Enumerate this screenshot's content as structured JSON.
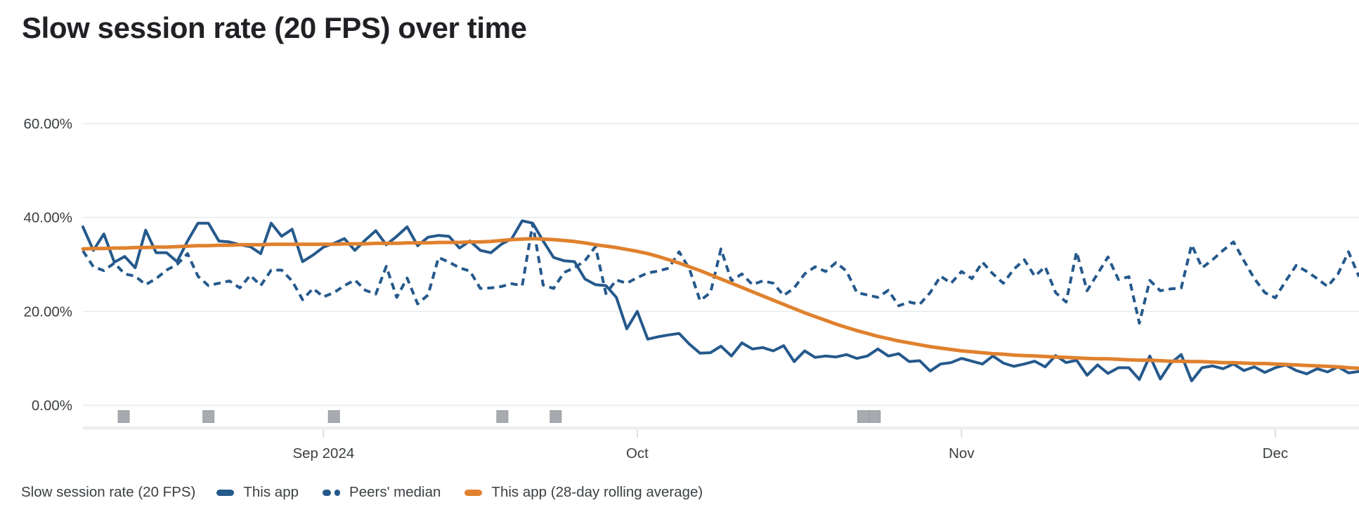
{
  "title": "Slow session rate (20 FPS) over time",
  "legend": {
    "axis_label": "Slow session rate (20 FPS)",
    "items": [
      {
        "label": "This app",
        "style": "solid",
        "color": "#25598C"
      },
      {
        "label": "Peers' median",
        "style": "dashed",
        "color": "#25598C"
      },
      {
        "label": "This app (28-day rolling average)",
        "style": "solid",
        "color": "#E0812E"
      }
    ]
  },
  "colors": {
    "grid": "#E8EAED",
    "axis_text": "#3C4043",
    "title_text": "#202124",
    "release_marker_fill": "#A7ABB0",
    "release_marker_edge": "#999EA3",
    "band_bar": "#EDEEF0",
    "month_tick": "#DEE0E3",
    "series_blue": "#25598C",
    "series_orange": "#E0812E"
  },
  "chart_data": {
    "type": "line",
    "title": "Slow session rate (20 FPS) over time",
    "xlabel": "",
    "ylabel": "Slow session rate (20 FPS)",
    "ylim": [
      0,
      60
    ],
    "grid": true,
    "legend_position": "bottom",
    "x_unit": "days (daily points, Aug 9 2024 - Dec 9 2024)",
    "y_ticks": [
      {
        "value": 60,
        "label": "60.00%"
      },
      {
        "value": 40,
        "label": "40.00%"
      },
      {
        "value": 20,
        "label": "20.00%"
      },
      {
        "value": 0,
        "label": "0.00%"
      }
    ],
    "x_ticks": [
      {
        "day": 23,
        "label": "Sep 2024"
      },
      {
        "day": 53,
        "label": "Oct"
      },
      {
        "day": 84,
        "label": "Nov"
      },
      {
        "day": 114,
        "label": "Dec"
      }
    ],
    "release_markers": {
      "days": [
        3.9,
        12.0,
        24.0,
        40.1,
        45.2,
        74.6,
        75.7
      ]
    },
    "series": [
      {
        "name": "This app",
        "style": "solid",
        "color": "#25598C",
        "values": [
          38.0,
          33.0,
          36.5,
          30.5,
          31.7,
          29.3,
          37.3,
          32.5,
          32.5,
          30.6,
          35.0,
          38.8,
          38.8,
          35.0,
          34.8,
          34.2,
          33.8,
          32.3,
          38.8,
          36.0,
          37.5,
          30.6,
          32.0,
          33.7,
          34.5,
          35.5,
          33.0,
          35.2,
          37.2,
          34.2,
          36.0,
          38.0,
          34.0,
          35.8,
          36.2,
          36.0,
          33.5,
          35.0,
          33.0,
          32.5,
          34.3,
          35.5,
          39.3,
          38.8,
          35.0,
          31.5,
          30.8,
          30.6,
          26.9,
          25.7,
          25.5,
          23.0,
          16.3,
          20.0,
          14.1,
          14.6,
          15.0,
          15.3,
          13.0,
          11.1,
          11.2,
          12.6,
          10.5,
          13.3,
          12.0,
          12.3,
          11.6,
          12.7,
          9.3,
          11.6,
          10.2,
          10.5,
          10.3,
          10.8,
          10.0,
          10.5,
          12.0,
          10.5,
          11.0,
          9.3,
          9.5,
          7.3,
          8.8,
          9.1,
          10.0,
          9.4,
          8.8,
          10.5,
          9.0,
          8.3,
          8.8,
          9.4,
          8.2,
          10.6,
          9.1,
          9.6,
          6.4,
          8.6,
          6.8,
          8.0,
          8.0,
          5.5,
          10.5,
          5.6,
          9.0,
          10.8,
          5.2,
          8.0,
          8.4,
          7.8,
          8.8,
          7.4,
          8.2,
          7.0,
          8.0,
          8.6,
          7.4,
          6.7,
          7.8,
          7.1,
          8.2,
          6.9,
          7.2
        ]
      },
      {
        "name": "Peers' median",
        "style": "dashed",
        "color": "#25598C",
        "values": [
          32.9,
          29.5,
          28.7,
          30.3,
          28.0,
          27.5,
          25.7,
          27.0,
          28.8,
          30.0,
          32.3,
          27.5,
          25.5,
          26.0,
          26.5,
          25.0,
          27.7,
          25.5,
          28.8,
          28.8,
          26.5,
          22.5,
          24.9,
          23.1,
          24.0,
          25.5,
          26.7,
          24.5,
          23.7,
          29.6,
          23.0,
          27.1,
          21.6,
          23.5,
          31.5,
          30.5,
          29.3,
          28.6,
          24.9,
          25.0,
          25.3,
          25.9,
          25.5,
          38.7,
          25.6,
          24.9,
          28.3,
          29.3,
          30.8,
          33.8,
          23.8,
          26.7,
          26.0,
          27.2,
          28.2,
          28.6,
          29.2,
          32.7,
          29.0,
          22.3,
          24.0,
          33.3,
          26.5,
          28.0,
          25.7,
          26.5,
          26.0,
          23.4,
          25.0,
          28.0,
          29.5,
          28.5,
          30.4,
          28.6,
          24.0,
          23.5,
          23.0,
          24.5,
          21.2,
          22.0,
          21.5,
          24.0,
          27.5,
          26.0,
          28.5,
          27.0,
          30.5,
          28.0,
          26.0,
          29.0,
          31.0,
          27.5,
          29.5,
          24.0,
          22.0,
          32.7,
          24.4,
          28.0,
          31.6,
          26.8,
          27.4,
          17.5,
          26.6,
          24.4,
          24.8,
          25.0,
          34.2,
          29.3,
          31.0,
          33.0,
          34.8,
          30.8,
          27.0,
          24.0,
          22.9,
          26.5,
          29.8,
          28.5,
          27.0,
          25.3,
          28.0,
          32.7,
          27.4
        ]
      },
      {
        "name": "This app (28-day rolling average)",
        "style": "solid",
        "color": "#E0812E",
        "values": [
          33.3,
          33.4,
          33.4,
          33.5,
          33.5,
          33.6,
          33.6,
          33.7,
          33.7,
          33.8,
          33.9,
          34.0,
          34.0,
          34.1,
          34.1,
          34.2,
          34.2,
          34.2,
          34.3,
          34.3,
          34.3,
          34.3,
          34.3,
          34.3,
          34.3,
          34.4,
          34.4,
          34.4,
          34.5,
          34.5,
          34.5,
          34.6,
          34.6,
          34.6,
          34.7,
          34.7,
          34.7,
          34.8,
          34.8,
          34.9,
          35.1,
          35.3,
          35.4,
          35.5,
          35.4,
          35.3,
          35.1,
          34.9,
          34.6,
          34.2,
          33.9,
          33.6,
          33.2,
          32.8,
          32.3,
          31.7,
          31.0,
          30.3,
          29.5,
          28.7,
          27.8,
          26.9,
          26.0,
          25.1,
          24.2,
          23.3,
          22.4,
          21.5,
          20.6,
          19.7,
          18.9,
          18.1,
          17.3,
          16.6,
          15.9,
          15.3,
          14.7,
          14.2,
          13.7,
          13.3,
          12.9,
          12.5,
          12.2,
          11.9,
          11.6,
          11.4,
          11.2,
          11.0,
          10.9,
          10.7,
          10.6,
          10.5,
          10.4,
          10.3,
          10.2,
          10.1,
          10.0,
          9.9,
          9.9,
          9.8,
          9.7,
          9.6,
          9.6,
          9.5,
          9.4,
          9.4,
          9.3,
          9.3,
          9.2,
          9.1,
          9.1,
          9.0,
          8.9,
          8.9,
          8.8,
          8.7,
          8.6,
          8.5,
          8.4,
          8.3,
          8.2,
          8.0,
          7.9
        ]
      }
    ]
  }
}
